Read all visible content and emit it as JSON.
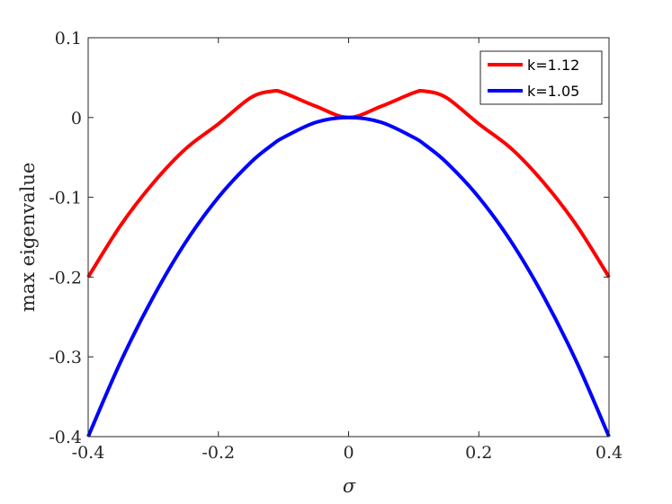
{
  "chart_data": {
    "type": "line",
    "title": "",
    "xlabel": "σ",
    "ylabel": "max eigenvalue",
    "xlim": [
      -0.4,
      0.4
    ],
    "ylim": [
      -0.4,
      0.1
    ],
    "xticks": [
      -0.4,
      -0.2,
      0,
      0.2,
      0.4
    ],
    "xtick_labels": [
      "-0.4",
      "-0.2",
      "0",
      "0.2",
      "0.4"
    ],
    "yticks": [
      -0.4,
      -0.3,
      -0.2,
      -0.1,
      0,
      0.1
    ],
    "ytick_labels": [
      "-0.4",
      "-0.3",
      "-0.2",
      "-0.1",
      "0",
      "0.1"
    ],
    "grid": false,
    "legend_position": "top-right",
    "x": [
      -0.4,
      -0.35,
      -0.3,
      -0.25,
      -0.2,
      -0.15,
      -0.117,
      -0.1,
      -0.05,
      0,
      0.05,
      0.1,
      0.117,
      0.15,
      0.2,
      0.25,
      0.3,
      0.35,
      0.4
    ],
    "series": [
      {
        "name": "k=1.12",
        "color": "#ff0000",
        "values": [
          -0.2,
          -0.135,
          -0.082,
          -0.039,
          -0.008,
          0.025,
          0.033,
          0.031,
          0.014,
          0.0,
          0.014,
          0.031,
          0.033,
          0.025,
          -0.008,
          -0.039,
          -0.082,
          -0.135,
          -0.2
        ]
      },
      {
        "name": "k=1.05",
        "color": "#0000ff",
        "values": [
          -0.4,
          -0.306,
          -0.225,
          -0.156,
          -0.1,
          -0.056,
          -0.034,
          -0.025,
          -0.006,
          0.0,
          -0.006,
          -0.025,
          -0.034,
          -0.056,
          -0.1,
          -0.156,
          -0.225,
          -0.306,
          -0.4
        ]
      }
    ]
  }
}
